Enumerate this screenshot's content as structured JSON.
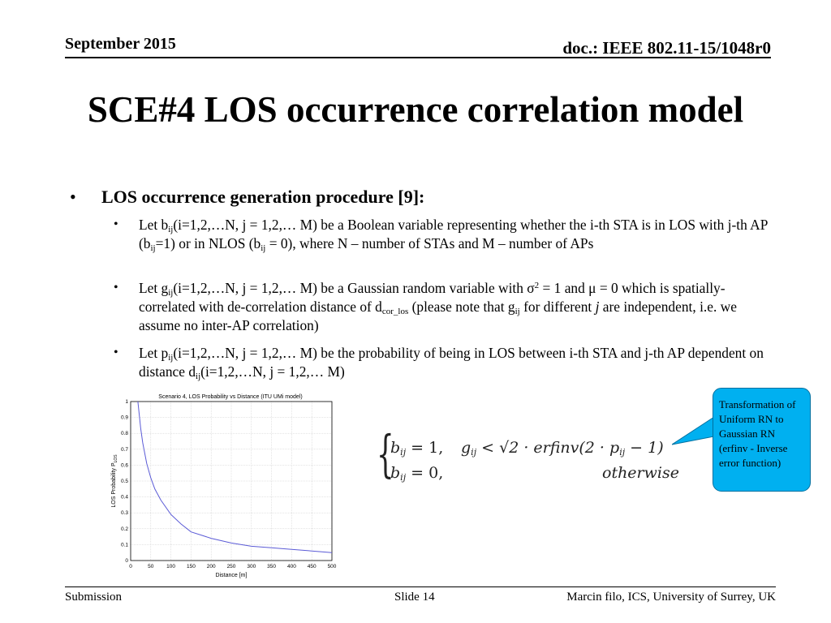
{
  "header": {
    "date": "September 2015",
    "doc": "doc.: IEEE 802.11-15/1048r0"
  },
  "title": "SCE#4 LOS occurrence correlation model",
  "bullet": {
    "heading": "LOS occurrence generation procedure [9]:",
    "items": [
      {
        "parts": [
          "Let b",
          "ij",
          "(i=1,2,…N, j = 1,2,… M) be a Boolean variable representing whether the i-th STA is in LOS with j-th AP (b",
          "ij",
          "=1) or in NLOS (b",
          "ij",
          " = 0), where N – number of STAs and M – number of APs"
        ]
      },
      {
        "parts": [
          "Let g",
          "ij",
          "(i=1,2,…N, j = 1,2,… M) be a Gaussian random variable with σ",
          "2",
          " = 1 and μ = 0 which is spatially-correlated with de-correlation distance of d",
          "cor_los",
          "  (please note that g",
          "ij",
          " for different ",
          "j",
          " are independent, i.e. we assume no inter-AP correlation)"
        ]
      },
      {
        "parts": [
          "Let p",
          "ij",
          "(i=1,2,…N, j = 1,2,… M) be the probability of being in LOS between i-th STA and j-th AP dependent on distance d",
          "ij",
          "(i=1,2,…N, j = 1,2,… M)"
        ]
      }
    ]
  },
  "formula": {
    "line1_lhs": "b",
    "line1_sub": "ij",
    "line1_eq": " = 1,",
    "cond_g": "g",
    "cond_sub": "ij",
    "cond_rest": " < √2 · erfinv(2 · p",
    "cond_sub2": "ij",
    "cond_end": " − 1)",
    "line2_lhs": "b",
    "line2_sub": "ij",
    "line2_eq": " = 0,",
    "otherwise": "otherwise"
  },
  "callout": {
    "text": "Transformation of Uniform RN to Gaussian RN  (erfinv - Inverse error function)"
  },
  "footer": {
    "left": "Submission",
    "center": "Slide 14",
    "right": "Marcin filo, ICS, University of Surrey, UK"
  },
  "colors": {
    "curve": "#5b5bd6",
    "callout_fill": "#00b0f0",
    "grid": "#c8c8c8"
  },
  "chart_data": {
    "type": "line",
    "title": "Scenario 4, LOS Probability vs Distance (ITU UMi model)",
    "xlabel": "Distance [m]",
    "ylabel": "LOS Probability P",
    "ylabel_sub": "LOS",
    "xlim": [
      0,
      500
    ],
    "ylim": [
      0,
      1
    ],
    "xticks": [
      0,
      50,
      100,
      150,
      200,
      250,
      300,
      350,
      400,
      450,
      500
    ],
    "yticks": [
      0,
      0.1,
      0.2,
      0.3,
      0.4,
      0.5,
      0.6,
      0.7,
      0.8,
      0.9,
      1
    ],
    "grid": true,
    "series": [
      {
        "x": [
          18,
          25,
          30,
          40,
          50,
          60,
          75,
          100,
          125,
          150,
          175,
          200,
          250,
          300,
          350,
          400,
          450,
          500
        ],
        "values": [
          1.0,
          0.83,
          0.74,
          0.61,
          0.52,
          0.45,
          0.38,
          0.29,
          0.23,
          0.18,
          0.16,
          0.14,
          0.11,
          0.09,
          0.08,
          0.07,
          0.06,
          0.05
        ]
      }
    ]
  }
}
